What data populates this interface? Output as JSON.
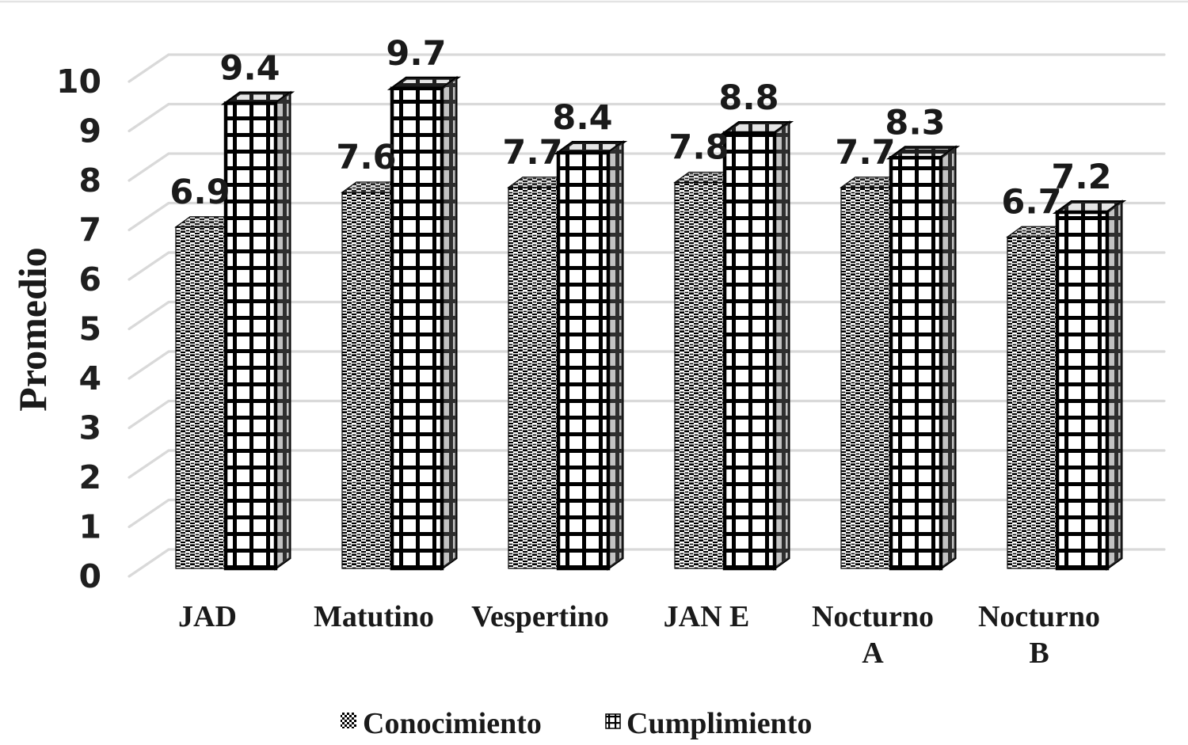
{
  "chart_data": {
    "type": "bar",
    "subtype": "3d-clustered-column",
    "title": "",
    "xlabel": "",
    "ylabel": "Promedio",
    "ylim": [
      0,
      10
    ],
    "yticks": [
      0,
      1,
      2,
      3,
      4,
      5,
      6,
      7,
      8,
      9,
      10
    ],
    "grid": true,
    "legend_position": "bottom",
    "data_labels": true,
    "categories": [
      "JAD",
      "Matutino",
      "Vespertino",
      "JAN E",
      "Nocturno\nA",
      "Nocturno\nB"
    ],
    "series": [
      {
        "name": "Conocimiento",
        "pattern": "woven-checker",
        "values": [
          6.9,
          7.6,
          7.7,
          7.8,
          7.7,
          6.7
        ]
      },
      {
        "name": "Cumplimiento",
        "pattern": "grid",
        "values": [
          9.4,
          9.7,
          8.4,
          8.8,
          8.3,
          7.2
        ]
      }
    ],
    "colors": {
      "pattern_foreground": "#000000",
      "pattern_background": "#ffffff",
      "gridline": "#d9d9d9",
      "text": "#1a1a1a"
    }
  }
}
